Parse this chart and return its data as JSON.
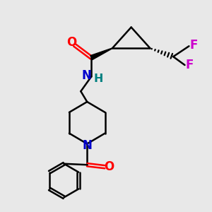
{
  "bg_color": "#e8e8e8",
  "bond_color": "#000000",
  "o_color": "#ff0000",
  "n_color": "#0000cc",
  "f_color": "#cc00cc",
  "h_color": "#008080",
  "line_width": 1.8,
  "fig_width": 3.0,
  "fig_height": 3.0,
  "dpi": 100,
  "xlim": [
    0,
    10
  ],
  "ylim": [
    0,
    10
  ]
}
